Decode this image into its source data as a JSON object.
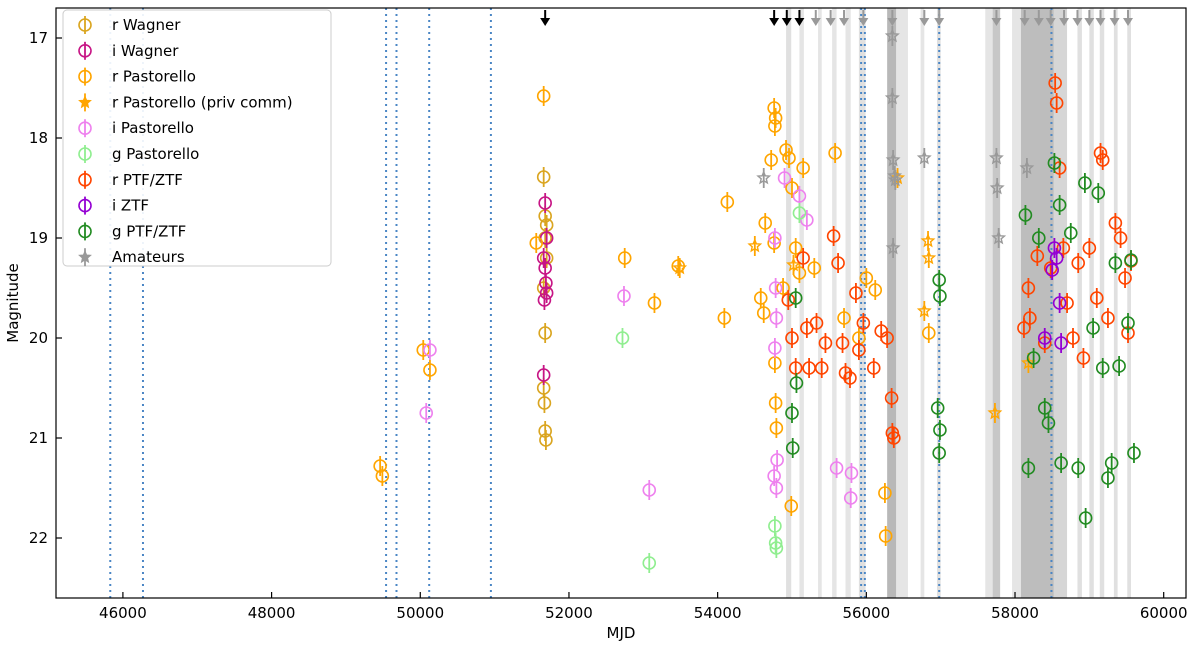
{
  "chart_data": {
    "type": "scatter",
    "title": "",
    "xlabel": "MJD",
    "ylabel": "Magnitude",
    "xlim": [
      45100,
      60300
    ],
    "ylim": [
      22.6,
      16.7
    ],
    "y_inverted": true,
    "xticks": [
      46000,
      48000,
      50000,
      52000,
      54000,
      56000,
      58000,
      60000
    ],
    "yticks": [
      17,
      18,
      19,
      20,
      21,
      22
    ],
    "grid": false,
    "legend_position": "upper-left",
    "legend": [
      {
        "label": "r Wagner",
        "color": "#DAA520",
        "marker": "circle"
      },
      {
        "label": "i Wagner",
        "color": "#C71585",
        "marker": "circle"
      },
      {
        "label": "r Pastorello",
        "color": "#FFA500",
        "marker": "circle"
      },
      {
        "label": "r Pastorello (priv comm)",
        "color": "#FFA500",
        "marker": "star"
      },
      {
        "label": "i Pastorello",
        "color": "#EE82EE",
        "marker": "circle"
      },
      {
        "label": "g Pastorello",
        "color": "#90EE90",
        "marker": "circle"
      },
      {
        "label": "r PTF/ZTF",
        "color": "#FF4500",
        "marker": "circle"
      },
      {
        "label": "i ZTF",
        "color": "#9400D3",
        "marker": "circle"
      },
      {
        "label": "g PTF/ZTF",
        "color": "#228B22",
        "marker": "circle"
      },
      {
        "label": "Amateurs",
        "color": "#999999",
        "marker": "star"
      }
    ],
    "vertical_dotted_lines": [
      45830,
      46270,
      49540,
      49680,
      50120,
      50950,
      55930,
      55980,
      56980,
      58490
    ],
    "shaded_bands": [
      {
        "x0": 54920,
        "x1": 54990,
        "shade": 0.12
      },
      {
        "x0": 55100,
        "x1": 55160,
        "shade": 0.1
      },
      {
        "x0": 55350,
        "x1": 55400,
        "shade": 0.1
      },
      {
        "x0": 55540,
        "x1": 55600,
        "shade": 0.1
      },
      {
        "x0": 55720,
        "x1": 55790,
        "shade": 0.1
      },
      {
        "x0": 55900,
        "x1": 55990,
        "shade": 0.12
      },
      {
        "x0": 56280,
        "x1": 56400,
        "shade": 0.28
      },
      {
        "x0": 56400,
        "x1": 56560,
        "shade": 0.1
      },
      {
        "x0": 56730,
        "x1": 56780,
        "shade": 0.1
      },
      {
        "x0": 56950,
        "x1": 57000,
        "shade": 0.12
      },
      {
        "x0": 57600,
        "x1": 57700,
        "shade": 0.1
      },
      {
        "x0": 57700,
        "x1": 57800,
        "shade": 0.22
      },
      {
        "x0": 57960,
        "x1": 58080,
        "shade": 0.1
      },
      {
        "x0": 58080,
        "x1": 58520,
        "shade": 0.26
      },
      {
        "x0": 58520,
        "x1": 58700,
        "shade": 0.16
      },
      {
        "x0": 58840,
        "x1": 58900,
        "shade": 0.12
      },
      {
        "x0": 59000,
        "x1": 59060,
        "shade": 0.12
      },
      {
        "x0": 59140,
        "x1": 59200,
        "shade": 0.12
      },
      {
        "x0": 59330,
        "x1": 59380,
        "shade": 0.12
      },
      {
        "x0": 59510,
        "x1": 59560,
        "shade": 0.12
      }
    ],
    "top_limit_arrows": [
      {
        "x": 51680,
        "color": "#000000"
      },
      {
        "x": 54760,
        "color": "#000000"
      },
      {
        "x": 54930,
        "color": "#000000"
      },
      {
        "x": 55100,
        "color": "#000000"
      },
      {
        "x": 55320,
        "color": "#999999"
      },
      {
        "x": 55520,
        "color": "#999999"
      },
      {
        "x": 55700,
        "color": "#999999"
      },
      {
        "x": 55960,
        "color": "#999999"
      },
      {
        "x": 56350,
        "color": "#999999"
      },
      {
        "x": 56780,
        "color": "#999999"
      },
      {
        "x": 56980,
        "color": "#999999"
      },
      {
        "x": 57750,
        "color": "#999999"
      },
      {
        "x": 58130,
        "color": "#999999"
      },
      {
        "x": 58320,
        "color": "#999999"
      },
      {
        "x": 58480,
        "color": "#999999"
      },
      {
        "x": 58660,
        "color": "#999999"
      },
      {
        "x": 58840,
        "color": "#999999"
      },
      {
        "x": 59000,
        "color": "#999999"
      },
      {
        "x": 59150,
        "color": "#999999"
      },
      {
        "x": 59340,
        "color": "#999999"
      },
      {
        "x": 59520,
        "color": "#999999"
      }
    ],
    "series": [
      {
        "name": "r Wagner",
        "color": "#DAA520",
        "marker": "circle",
        "points": [
          [
            51660,
            18.39
          ],
          [
            51680,
            18.78
          ],
          [
            51700,
            18.87
          ],
          [
            51680,
            19.0
          ],
          [
            51700,
            19.2
          ],
          [
            51660,
            19.5
          ],
          [
            51680,
            19.95
          ],
          [
            51660,
            20.5
          ],
          [
            51670,
            20.65
          ],
          [
            51680,
            20.93
          ],
          [
            51690,
            21.02
          ]
        ]
      },
      {
        "name": "i Wagner",
        "color": "#C71585",
        "marker": "circle",
        "points": [
          [
            51680,
            18.65
          ],
          [
            51700,
            19.0
          ],
          [
            51660,
            19.2
          ],
          [
            51680,
            19.3
          ],
          [
            51700,
            19.55
          ],
          [
            51670,
            19.62
          ],
          [
            51690,
            19.45
          ],
          [
            51660,
            20.37
          ]
        ]
      },
      {
        "name": "r Pastorello",
        "color": "#FFA500",
        "marker": "circle",
        "points": [
          [
            49460,
            21.28
          ],
          [
            49490,
            21.38
          ],
          [
            50040,
            20.12
          ],
          [
            50130,
            20.32
          ],
          [
            51560,
            19.05
          ],
          [
            51660,
            17.58
          ],
          [
            52750,
            19.2
          ],
          [
            53150,
            19.65
          ],
          [
            53470,
            19.28
          ],
          [
            54090,
            19.8
          ],
          [
            54130,
            18.64
          ],
          [
            54580,
            19.6
          ],
          [
            54620,
            19.75
          ],
          [
            54640,
            18.85
          ],
          [
            54720,
            18.22
          ],
          [
            54760,
            17.7
          ],
          [
            54780,
            17.8
          ],
          [
            54770,
            17.88
          ],
          [
            54760,
            19.05
          ],
          [
            54770,
            20.25
          ],
          [
            54780,
            20.65
          ],
          [
            54790,
            20.9
          ],
          [
            54920,
            18.12
          ],
          [
            54960,
            18.2
          ],
          [
            55000,
            18.5
          ],
          [
            55050,
            19.1
          ],
          [
            55150,
            18.3
          ],
          [
            55300,
            19.3
          ],
          [
            55580,
            18.15
          ],
          [
            55700,
            19.8
          ],
          [
            55900,
            20.0
          ],
          [
            56000,
            19.4
          ],
          [
            56120,
            19.52
          ],
          [
            56250,
            21.55
          ],
          [
            56260,
            21.98
          ],
          [
            56840,
            19.95
          ],
          [
            54990,
            21.68
          ],
          [
            54880,
            19.5
          ],
          [
            55100,
            19.35
          ]
        ]
      },
      {
        "name": "r Pastorello (priv comm)",
        "color": "#FFA500",
        "marker": "star",
        "points": [
          [
            53490,
            19.3
          ],
          [
            54500,
            19.08
          ],
          [
            55020,
            19.27
          ],
          [
            56830,
            19.03
          ],
          [
            56840,
            19.2
          ],
          [
            56780,
            19.73
          ],
          [
            57730,
            20.75
          ],
          [
            58180,
            20.25
          ],
          [
            56420,
            18.4
          ]
        ]
      },
      {
        "name": "i Pastorello",
        "color": "#EE82EE",
        "marker": "circle",
        "points": [
          [
            50080,
            20.75
          ],
          [
            50130,
            20.12
          ],
          [
            52740,
            19.58
          ],
          [
            53080,
            21.52
          ],
          [
            54770,
            19.0
          ],
          [
            54780,
            19.5
          ],
          [
            54790,
            19.8
          ],
          [
            54770,
            20.1
          ],
          [
            54760,
            21.38
          ],
          [
            54790,
            21.5
          ],
          [
            54800,
            21.22
          ],
          [
            54900,
            18.4
          ],
          [
            55100,
            18.58
          ],
          [
            55200,
            18.82
          ],
          [
            55600,
            21.3
          ],
          [
            55790,
            21.6
          ],
          [
            55800,
            21.35
          ]
        ]
      },
      {
        "name": "g Pastorello",
        "color": "#90EE90",
        "marker": "circle",
        "points": [
          [
            52720,
            20.0
          ],
          [
            53080,
            22.25
          ],
          [
            54770,
            21.88
          ],
          [
            54790,
            22.1
          ],
          [
            54780,
            22.05
          ],
          [
            55100,
            18.75
          ]
        ]
      },
      {
        "name": "r PTF/ZTF",
        "color": "#FF4500",
        "marker": "circle",
        "points": [
          [
            54950,
            19.62
          ],
          [
            55000,
            20.0
          ],
          [
            55050,
            20.3
          ],
          [
            55150,
            19.2
          ],
          [
            55200,
            19.9
          ],
          [
            55230,
            20.3
          ],
          [
            55330,
            19.85
          ],
          [
            55400,
            20.3
          ],
          [
            55450,
            20.05
          ],
          [
            55560,
            18.98
          ],
          [
            55620,
            19.25
          ],
          [
            55680,
            20.05
          ],
          [
            55720,
            20.35
          ],
          [
            55780,
            20.4
          ],
          [
            55860,
            19.55
          ],
          [
            55900,
            20.12
          ],
          [
            55960,
            19.85
          ],
          [
            56100,
            20.3
          ],
          [
            56200,
            19.93
          ],
          [
            56280,
            20.0
          ],
          [
            56340,
            20.6
          ],
          [
            56350,
            20.95
          ],
          [
            56370,
            21.0
          ],
          [
            58120,
            19.9
          ],
          [
            58180,
            19.5
          ],
          [
            58200,
            19.8
          ],
          [
            58300,
            19.18
          ],
          [
            58400,
            20.05
          ],
          [
            58480,
            19.3
          ],
          [
            58540,
            17.45
          ],
          [
            58560,
            17.65
          ],
          [
            58600,
            18.3
          ],
          [
            58650,
            19.1
          ],
          [
            58700,
            19.65
          ],
          [
            58780,
            20.0
          ],
          [
            58850,
            19.25
          ],
          [
            58920,
            20.2
          ],
          [
            59000,
            19.1
          ],
          [
            59100,
            19.6
          ],
          [
            59150,
            18.15
          ],
          [
            59180,
            18.22
          ],
          [
            59250,
            19.8
          ],
          [
            59350,
            18.85
          ],
          [
            59420,
            19.0
          ],
          [
            59480,
            19.4
          ],
          [
            59520,
            19.95
          ],
          [
            59560,
            19.23
          ]
        ]
      },
      {
        "name": "i ZTF",
        "color": "#9400D3",
        "marker": "circle",
        "points": [
          [
            58500,
            19.32
          ],
          [
            58530,
            19.1
          ],
          [
            58560,
            19.2
          ],
          [
            58600,
            19.65
          ],
          [
            58620,
            20.05
          ],
          [
            58400,
            20.0
          ]
        ]
      },
      {
        "name": "g PTF/ZTF",
        "color": "#228B22",
        "marker": "circle",
        "points": [
          [
            55000,
            20.75
          ],
          [
            55010,
            21.1
          ],
          [
            55050,
            19.6
          ],
          [
            55060,
            20.45
          ],
          [
            56980,
            19.42
          ],
          [
            56990,
            19.58
          ],
          [
            56960,
            20.7
          ],
          [
            56980,
            21.15
          ],
          [
            56990,
            20.92
          ],
          [
            58140,
            18.77
          ],
          [
            58180,
            21.3
          ],
          [
            58250,
            20.2
          ],
          [
            58320,
            19.0
          ],
          [
            58400,
            20.7
          ],
          [
            58450,
            20.85
          ],
          [
            58530,
            18.25
          ],
          [
            58600,
            18.67
          ],
          [
            58620,
            21.25
          ],
          [
            58750,
            18.95
          ],
          [
            58850,
            21.3
          ],
          [
            58940,
            18.45
          ],
          [
            58950,
            21.8
          ],
          [
            59050,
            19.9
          ],
          [
            59120,
            18.55
          ],
          [
            59180,
            20.3
          ],
          [
            59250,
            21.4
          ],
          [
            59300,
            21.25
          ],
          [
            59350,
            19.25
          ],
          [
            59400,
            20.28
          ],
          [
            59520,
            19.85
          ],
          [
            59600,
            21.15
          ],
          [
            59560,
            19.22
          ]
        ]
      },
      {
        "name": "Amateurs",
        "color": "#999999",
        "marker": "star",
        "points": [
          [
            54620,
            18.4
          ],
          [
            56350,
            16.98
          ],
          [
            56350,
            17.6
          ],
          [
            56360,
            18.22
          ],
          [
            56380,
            18.38
          ],
          [
            56390,
            18.42
          ],
          [
            56360,
            19.1
          ],
          [
            56780,
            18.2
          ],
          [
            57750,
            18.2
          ],
          [
            57760,
            18.5
          ],
          [
            57780,
            19.0
          ],
          [
            58160,
            18.3
          ]
        ]
      }
    ]
  }
}
